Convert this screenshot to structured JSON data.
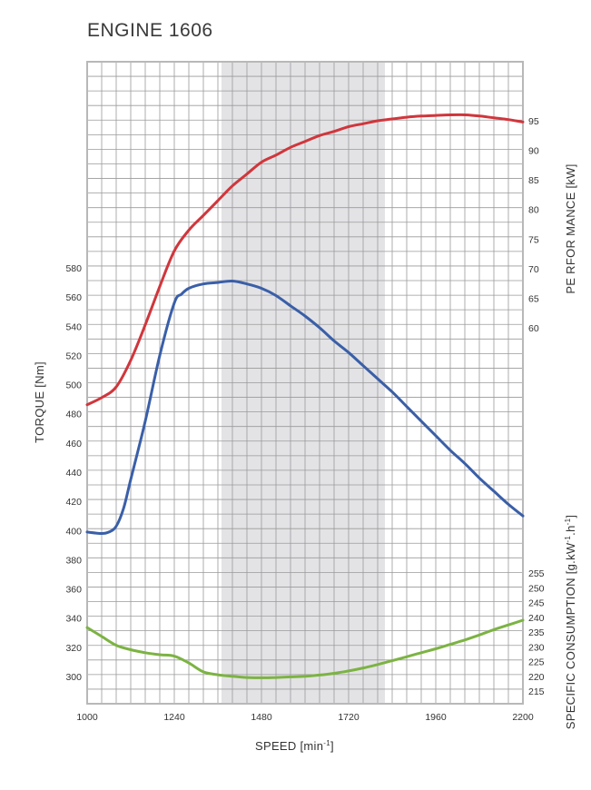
{
  "chart_data": {
    "type": "line",
    "title": "ENGINE 1606",
    "xlabel": "SPEED  [min",
    "xlabel_sup": "-1",
    "xlabel_end": "]",
    "x_ticks": [
      1000,
      1240,
      1480,
      1720,
      1960,
      2200
    ],
    "xlim": [
      1000,
      2200
    ],
    "grid": true,
    "highlight_band": {
      "x_from": 1370,
      "x_to": 1820,
      "color": "#e3e3e6"
    },
    "axes": {
      "torque": {
        "label": "TORQUE [Nm]",
        "side": "left",
        "ticks": [
          300,
          320,
          340,
          360,
          380,
          400,
          420,
          440,
          460,
          480,
          500,
          520,
          540,
          560,
          580
        ],
        "range": [
          285,
          590
        ]
      },
      "performance": {
        "label": "PE RFOR MANCE  [kW]",
        "side": "right",
        "ticks": [
          60,
          65,
          70,
          75,
          80,
          85,
          90,
          95
        ],
        "range": [
          58,
          97
        ]
      },
      "consumption": {
        "label": "SPECIFIC CONSUMPTION   [g.kW",
        "label_sup1": "-1",
        "label_mid": ".h",
        "label_sup2": "-1",
        "label_end": "]",
        "side": "right",
        "ticks": [
          215,
          220,
          225,
          230,
          235,
          240,
          245,
          250,
          255
        ],
        "range": [
          213,
          257
        ]
      }
    },
    "series": [
      {
        "axis": "performance",
        "color": "#d0363c",
        "x": [
          1000,
          1040,
          1080,
          1120,
          1160,
          1200,
          1240,
          1280,
          1320,
          1360,
          1400,
          1440,
          1480,
          1520,
          1560,
          1600,
          1640,
          1680,
          1720,
          1760,
          1800,
          1840,
          1880,
          1920,
          1960,
          2000,
          2040,
          2080,
          2120,
          2160,
          2200
        ],
        "values": [
          47.0,
          48.2,
          50.0,
          54.5,
          60.5,
          67.0,
          73.0,
          76.5,
          79.0,
          81.5,
          84.0,
          86.0,
          88.0,
          89.2,
          90.5,
          91.5,
          92.5,
          93.2,
          94.0,
          94.5,
          95.0,
          95.3,
          95.6,
          95.8,
          95.9,
          96.0,
          96.0,
          95.8,
          95.5,
          95.2,
          94.8
        ]
      },
      {
        "axis": "torque",
        "color": "#3a5fa8",
        "x": [
          1000,
          1040,
          1060,
          1080,
          1100,
          1120,
          1160,
          1200,
          1240,
          1260,
          1280,
          1320,
          1360,
          1400,
          1440,
          1480,
          1520,
          1560,
          1600,
          1640,
          1680,
          1720,
          1760,
          1800,
          1840,
          1880,
          1920,
          1960,
          2000,
          2040,
          2080,
          2120,
          2160,
          2200
        ],
        "values": [
          399,
          398,
          399,
          403,
          415,
          435,
          475,
          520,
          556,
          562,
          566,
          569,
          570,
          571,
          569,
          566,
          561,
          554,
          547,
          539,
          530,
          522,
          513,
          504,
          495,
          485,
          475,
          465,
          455,
          446,
          436,
          427,
          418,
          410
        ]
      },
      {
        "axis": "consumption",
        "color": "#7cb342",
        "x": [
          1000,
          1040,
          1080,
          1120,
          1160,
          1200,
          1240,
          1280,
          1320,
          1360,
          1400,
          1440,
          1480,
          1520,
          1560,
          1600,
          1640,
          1680,
          1720,
          1760,
          1800,
          1840,
          1880,
          1920,
          1960,
          2000,
          2040,
          2080,
          2120,
          2160,
          2200
        ],
        "values": [
          236.5,
          233.5,
          230.5,
          229.0,
          228.0,
          227.3,
          226.8,
          224.5,
          221.5,
          220.5,
          220.0,
          219.6,
          219.5,
          219.6,
          219.8,
          220.0,
          220.4,
          221.0,
          221.8,
          222.8,
          224.0,
          225.3,
          226.6,
          228.0,
          229.3,
          230.8,
          232.3,
          234.0,
          235.8,
          237.4,
          239.0
        ]
      }
    ]
  }
}
